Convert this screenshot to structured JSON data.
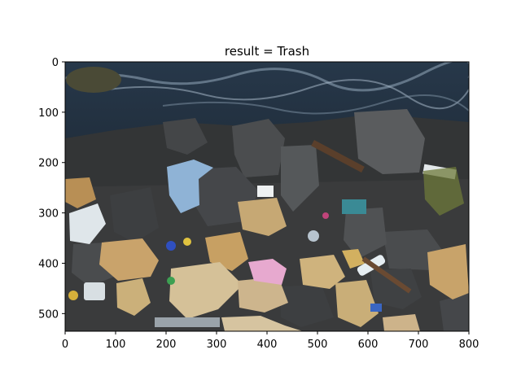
{
  "chart_data": {
    "type": "image",
    "title": "result = Trash",
    "xlabel": "",
    "ylabel": "",
    "xlim": [
      0,
      800
    ],
    "ylim": [
      535,
      0
    ],
    "xticks": [
      0,
      100,
      200,
      300,
      400,
      500,
      600,
      700,
      800
    ],
    "yticks": [
      0,
      100,
      200,
      300,
      400,
      500
    ],
    "grid": false,
    "image_description": "Photo of rocks and stones at a water's edge covered with litter",
    "colors": {
      "water_dark": "#1d2a38",
      "water_light": "#6f8497",
      "rock_gray": "#4c4f52",
      "rock_dark": "#2f3133",
      "stone_tan": "#c9a36b",
      "stone_beige": "#d7c29a",
      "plastic_blue": "#8fb3d6",
      "plastic_pink": "#e7a9cf",
      "plastic_white": "#dfe6ea"
    }
  }
}
